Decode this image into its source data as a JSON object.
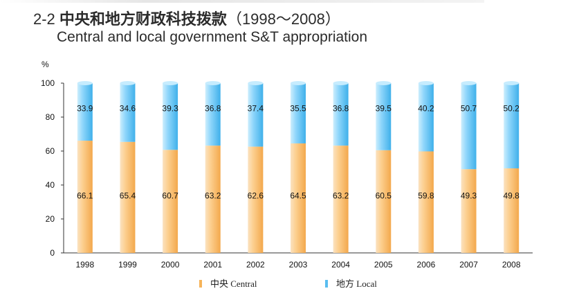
{
  "title": {
    "number": "2-2",
    "cn": "中央和地方财政科技拨款",
    "years": "（1998～2008）",
    "en": "Central and local government S&T appropriation"
  },
  "chart_data": {
    "type": "bar",
    "stacked": true,
    "ylabel": "%",
    "ylim": [
      0,
      100
    ],
    "yticks": [
      0,
      20,
      40,
      60,
      80,
      100
    ],
    "categories": [
      "1998",
      "1999",
      "2000",
      "2001",
      "2002",
      "2003",
      "2004",
      "2005",
      "2006",
      "2007",
      "2008"
    ],
    "series": [
      {
        "name": "中央 Central",
        "color": "#f6b45a",
        "values": [
          66.1,
          65.4,
          60.7,
          63.2,
          62.6,
          64.5,
          63.2,
          60.5,
          59.8,
          49.3,
          49.8
        ]
      },
      {
        "name": "地方 Local",
        "color": "#59bdf0",
        "values": [
          33.9,
          34.6,
          39.3,
          36.8,
          37.4,
          35.5,
          36.8,
          39.5,
          40.2,
          50.7,
          50.2
        ]
      }
    ],
    "legend_position": "bottom"
  }
}
